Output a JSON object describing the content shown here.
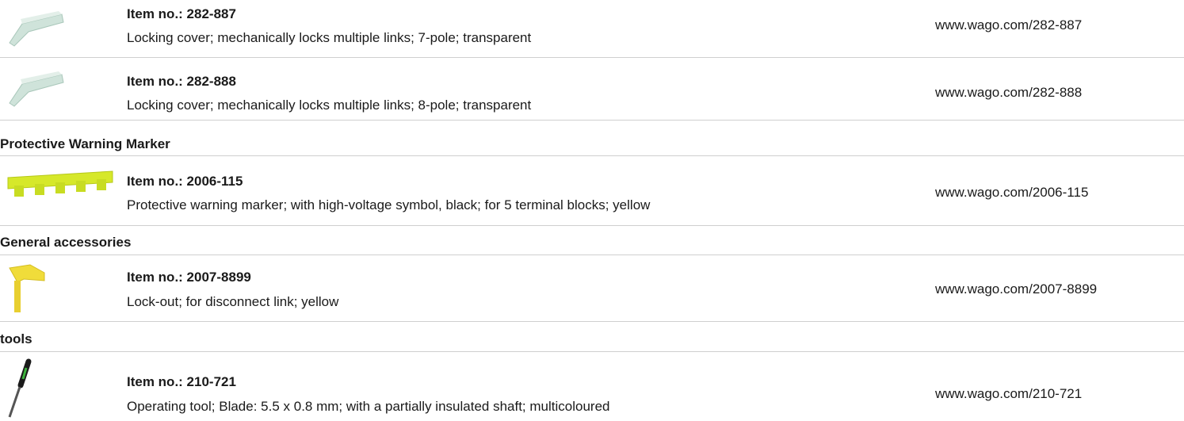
{
  "groups": [
    {
      "items": [
        {
          "item_no": "Item no.: 282-887",
          "description": "Locking cover; mechanically locks multiple links; 7-pole; transparent",
          "url": "www.wago.com/282-887"
        },
        {
          "item_no": "Item no.: 282-888",
          "description": "Locking cover; mechanically locks multiple links; 8-pole; transparent",
          "url": "www.wago.com/282-888"
        }
      ]
    },
    {
      "heading": "Protective Warning Marker",
      "items": [
        {
          "item_no": "Item no.: 2006-115",
          "description": "Protective warning marker; with high-voltage symbol, black; for 5 terminal blocks; yellow",
          "url": "www.wago.com/2006-115"
        }
      ]
    },
    {
      "heading": "General accessories",
      "items": [
        {
          "item_no": "Item no.: 2007-8899",
          "description": "Lock-out; for disconnect link; yellow",
          "url": "www.wago.com/2007-8899"
        }
      ]
    },
    {
      "heading": "tools",
      "items": [
        {
          "item_no": "Item no.: 210-721",
          "description": "Operating tool; Blade: 5.5 x 0.8 mm; with a partially insulated shaft; multicoloured",
          "url": "www.wago.com/210-721"
        }
      ]
    }
  ]
}
